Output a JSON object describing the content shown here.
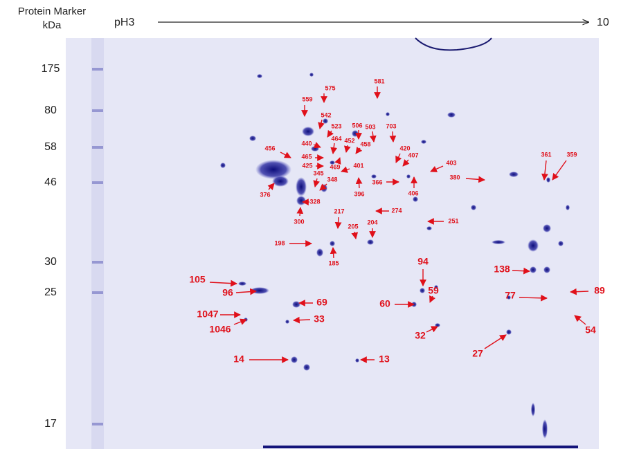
{
  "header": {
    "marker_title": "Protein Marker",
    "marker_unit": "kDa",
    "ph_start": "pH3",
    "ph_end": "10"
  },
  "markers": [
    "175",
    "80",
    "58",
    "46",
    "30",
    "25",
    "17"
  ],
  "spots": [
    "575",
    "581",
    "559",
    "542",
    "523",
    "506",
    "503",
    "703",
    "440",
    "464",
    "452",
    "458",
    "420",
    "407",
    "456",
    "465",
    "425",
    "469",
    "401",
    "403",
    "361",
    "359",
    "345",
    "348",
    "366",
    "380",
    "406",
    "396",
    "376",
    "328",
    "300",
    "274",
    "217",
    "251",
    "205",
    "204",
    "198",
    "185",
    "94",
    "138",
    "105",
    "96",
    "69",
    "59",
    "60",
    "77",
    "89",
    "1047",
    "33",
    "1046",
    "54",
    "32",
    "27",
    "14",
    "13"
  ]
}
